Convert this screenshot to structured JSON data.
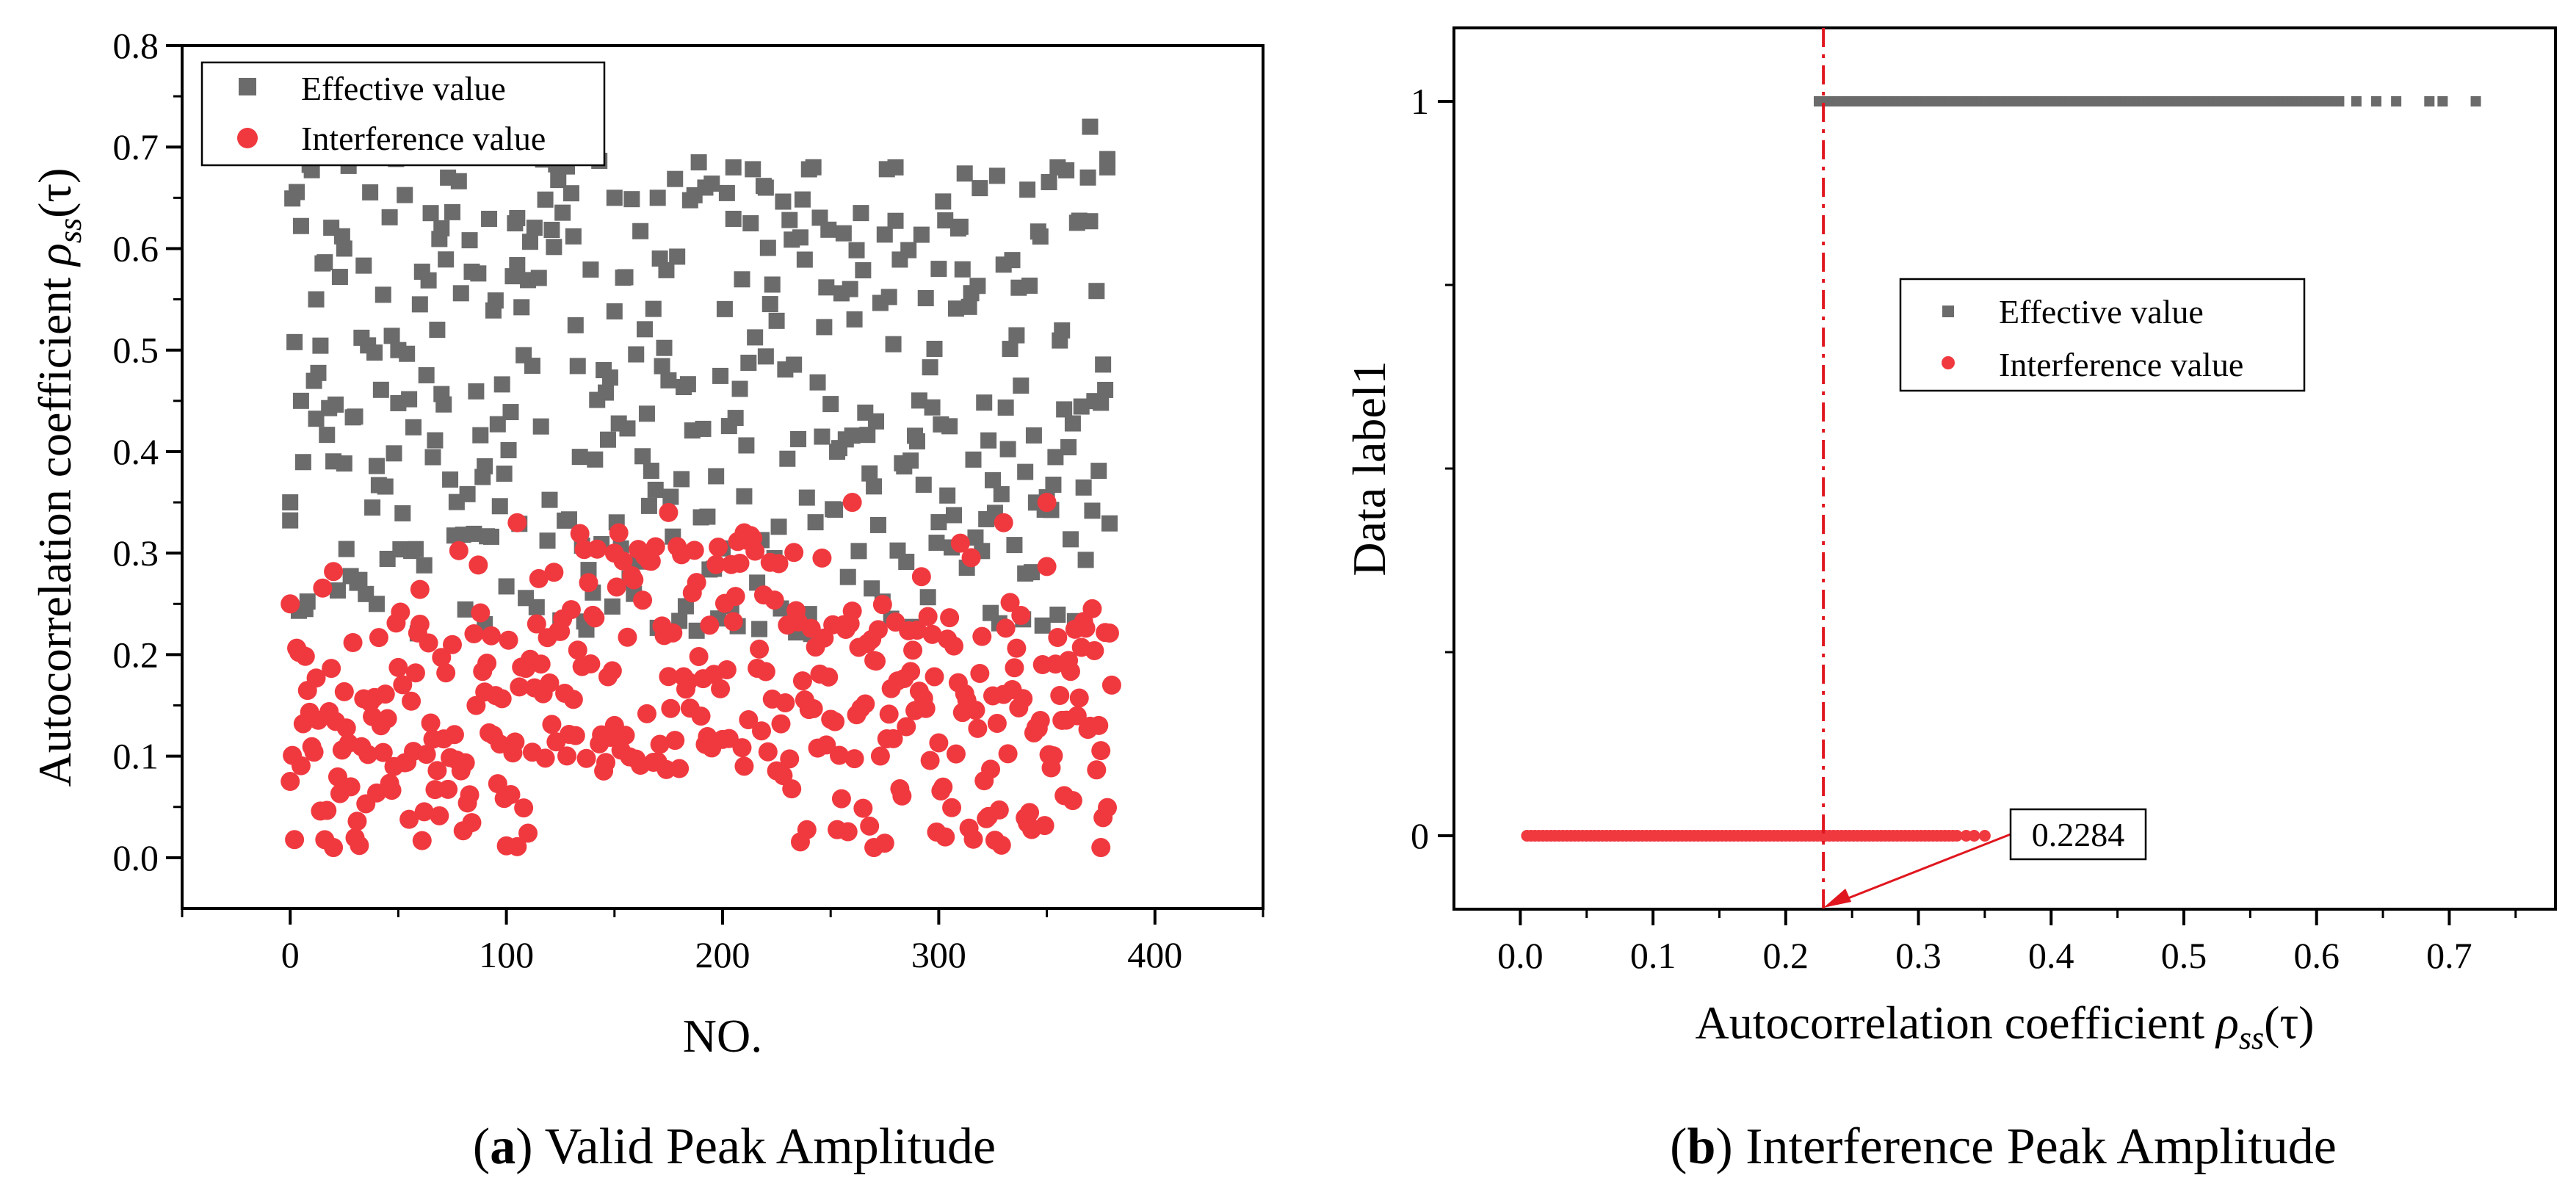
{
  "chart_data": [
    {
      "panel": "a",
      "type": "scatter",
      "caption": {
        "letter": "a",
        "text": "Valid Peak Amplitude"
      },
      "xlabel": "NO.",
      "ylabel_main": "Autocorrelation coefficient ",
      "ylabel_rho": "ρ",
      "ylabel_sub": "ss",
      "ylabel_tail": "(τ)",
      "xlim": [
        -50,
        450
      ],
      "ylim": [
        -0.05,
        0.8
      ],
      "xticks": [
        0,
        100,
        200,
        300,
        400
      ],
      "xtick_labels": [
        "0",
        "100",
        "200",
        "300",
        "400"
      ],
      "yticks": [
        0.0,
        0.1,
        0.2,
        0.3,
        0.4,
        0.5,
        0.6,
        0.7,
        0.8
      ],
      "ytick_labels": [
        "0.0",
        "0.1",
        "0.2",
        "0.3",
        "0.4",
        "0.5",
        "0.6",
        "0.7",
        "0.8"
      ],
      "legend": {
        "position": "top-left",
        "entries": [
          "Effective value",
          "Interference value"
        ]
      },
      "series": [
        {
          "name": "Effective value",
          "marker": "square",
          "color": "#6b6b6b",
          "generated_note": "≈380 points, NO. 0–380, values 0.22–0.72"
        },
        {
          "name": "Interference value",
          "marker": "circle",
          "color": "#f0393f",
          "generated_note": "≈380 points, NO. 0–380, values 0.01–0.35"
        }
      ],
      "sample_points": {
        "effective": [
          [
            0,
            0.35
          ],
          [
            5,
            0.45
          ],
          [
            12,
            0.55
          ],
          [
            25,
            0.6
          ],
          [
            50,
            0.5
          ],
          [
            70,
            0.62
          ],
          [
            105,
            0.63
          ],
          [
            150,
            0.65
          ],
          [
            170,
            0.65
          ],
          [
            205,
            0.68
          ],
          [
            220,
            0.66
          ],
          [
            280,
            0.68
          ],
          [
            355,
            0.68
          ],
          [
            370,
            0.72
          ],
          [
            378,
            0.68
          ],
          [
            90,
            0.23
          ],
          [
            40,
            0.25
          ],
          [
            240,
            0.24
          ],
          [
            300,
            0.58
          ],
          [
            340,
            0.38
          ]
        ],
        "interference": [
          [
            0,
            0.25
          ],
          [
            20,
            0.01
          ],
          [
            60,
            0.23
          ],
          [
            105,
            0.33
          ],
          [
            150,
            0.3
          ],
          [
            175,
            0.34
          ],
          [
            210,
            0.32
          ],
          [
            260,
            0.35
          ],
          [
            270,
            0.01
          ],
          [
            330,
            0.33
          ],
          [
            350,
            0.35
          ],
          [
            375,
            0.01
          ],
          [
            380,
            0.17
          ]
        ]
      },
      "series_size": 380
    },
    {
      "panel": "b",
      "type": "scatter",
      "caption": {
        "letter": "b",
        "text": "Interference Peak Amplitude"
      },
      "xlabel_main": "Autocorrelation coefficient ",
      "xlabel_rho": "ρ",
      "xlabel_sub": "ss",
      "xlabel_tail": "(τ)",
      "ylabel": "Data label1",
      "xlim": [
        -0.05,
        0.78
      ],
      "ylim": [
        -0.1,
        1.1
      ],
      "xticks": [
        0.0,
        0.1,
        0.2,
        0.3,
        0.4,
        0.5,
        0.6,
        0.7
      ],
      "xtick_labels": [
        "0.0",
        "0.1",
        "0.2",
        "0.3",
        "0.4",
        "0.5",
        "0.6",
        "0.7"
      ],
      "yticks": [
        0,
        1
      ],
      "ytick_labels": [
        "0",
        "1"
      ],
      "legend": {
        "position": "center-right",
        "entries": [
          "Effective value",
          "Interference value"
        ]
      },
      "series": [
        {
          "name": "Effective value",
          "label_value": 1,
          "x_range": [
            0.225,
            0.72
          ],
          "color": "#6b6b6b",
          "marker": "square"
        },
        {
          "name": "Interference value",
          "label_value": 0,
          "x_range": [
            0.005,
            0.35
          ],
          "color": "#f0393f",
          "marker": "circle"
        }
      ],
      "threshold": {
        "x": 0.2284,
        "label": "0.2284",
        "color": "#e0161e",
        "style": "dash-dot"
      }
    }
  ]
}
